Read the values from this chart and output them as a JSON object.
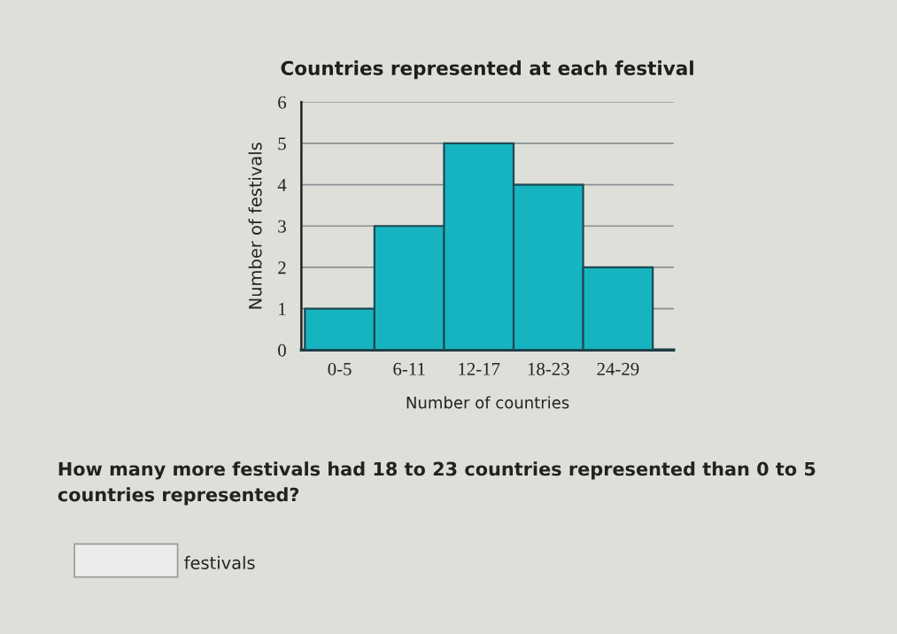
{
  "chart_data": {
    "type": "bar",
    "title": "Countries represented at each festival",
    "xlabel": "Number of countries",
    "ylabel": "Number of festivals",
    "categories": [
      "0-5",
      "6-11",
      "12-17",
      "18-23",
      "24-29"
    ],
    "values": [
      1,
      3,
      5,
      4,
      2
    ],
    "color": "#16b4c0",
    "ylim": [
      0,
      6
    ],
    "yticks": [
      0,
      1,
      2,
      3,
      4,
      5,
      6
    ],
    "grid": "y",
    "annotations": [
      "How many more festivals had 18 to 23 countries represented than 0 to 5 countries represented?",
      "festivals"
    ]
  }
}
